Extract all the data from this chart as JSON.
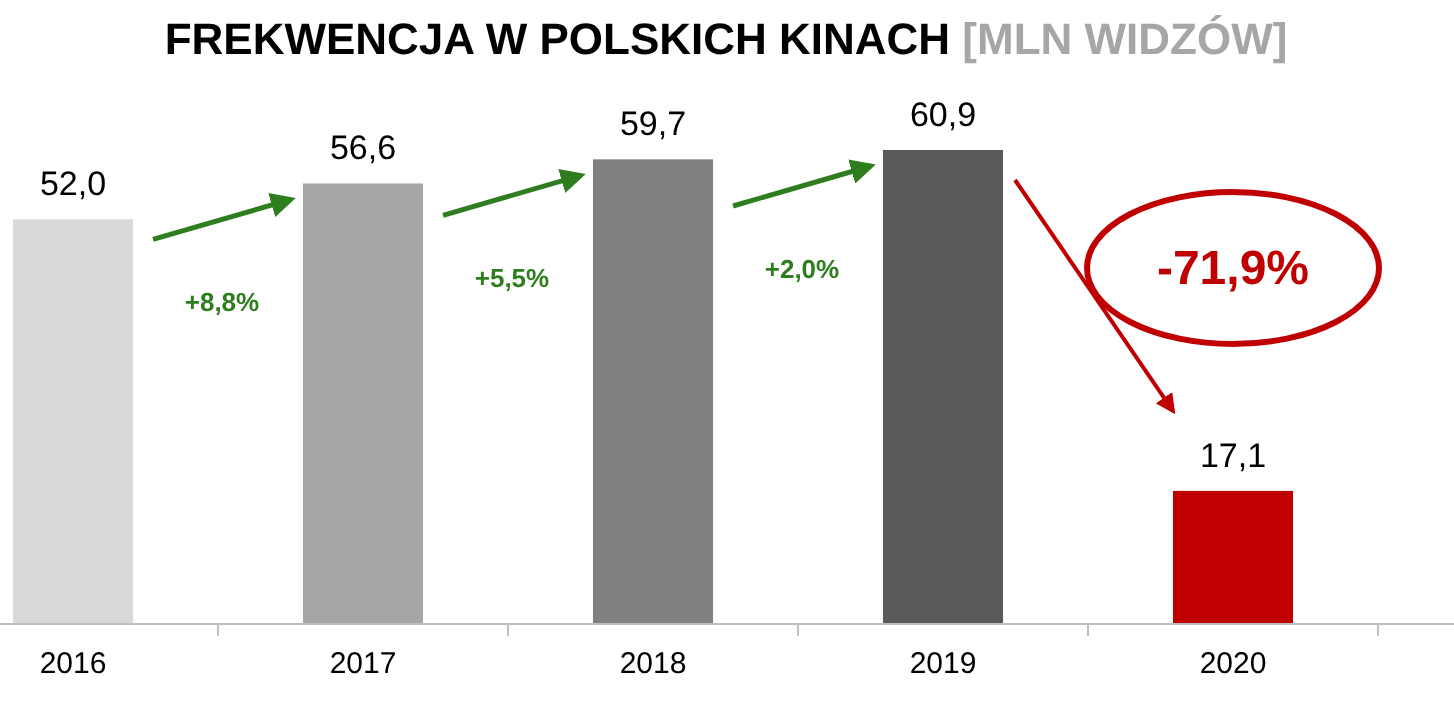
{
  "chart_data": {
    "type": "bar",
    "title": "FREKWENCJA W POLSKICH KINACH",
    "subtitle": "[MLN WIDZÓW]",
    "categories": [
      "2016",
      "2017",
      "2018",
      "2019",
      "2020"
    ],
    "values": [
      52.0,
      56.6,
      59.7,
      60.9,
      17.1
    ],
    "colors": [
      "#d9d9d9",
      "#a6a6a6",
      "#808080",
      "#595959",
      "#c00000"
    ],
    "value_labels": [
      "52,0",
      "56,6",
      "59,7",
      "60,9",
      "17,1"
    ],
    "annotations": [
      "+8,8%",
      "+5,5%",
      "+2,0%",
      "-71,9%"
    ]
  }
}
